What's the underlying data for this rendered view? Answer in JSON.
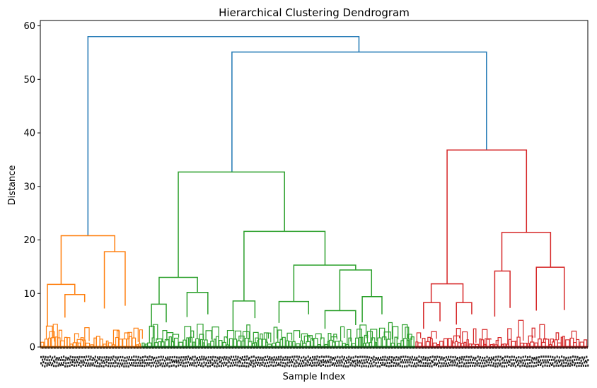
{
  "chart_data": {
    "type": "dendrogram",
    "title": "Hierarchical Clustering Dendrogram",
    "xlabel": "Sample Index",
    "ylabel": "Distance",
    "ylim": [
      0,
      61
    ],
    "yticks": [
      0,
      10,
      20,
      30,
      40,
      50,
      60
    ],
    "grid": false,
    "colors": {
      "above_threshold": "#1f77b4",
      "cluster_1": "#ff7f0e",
      "cluster_2": "#2ca02c",
      "cluster_3": "#d62728"
    },
    "leaf_span": [
      0,
      1000
    ],
    "clusters": [
      {
        "name": "cluster_1",
        "x_range": [
          0,
          185
        ]
      },
      {
        "name": "cluster_2",
        "x_range": [
          185,
          685
        ]
      },
      {
        "name": "cluster_3",
        "x_range": [
          685,
          1000
        ]
      }
    ],
    "links": [
      {
        "x": [
          87,
          87,
          582,
          582
        ],
        "y": [
          20.8,
          58,
          58,
          55.1
        ],
        "color": "above_threshold"
      },
      {
        "x": [
          350,
          350,
          815,
          815
        ],
        "y": [
          32.7,
          55.1,
          55.1,
          36.8
        ],
        "color": "above_threshold"
      },
      {
        "x": [
          38,
          38,
          136,
          136
        ],
        "y": [
          11.7,
          20.8,
          20.8,
          17.8
        ],
        "color": "cluster_1"
      },
      {
        "x": [
          13,
          13,
          63,
          63
        ],
        "y": [
          3.8,
          11.7,
          11.7,
          9.8
        ],
        "color": "cluster_1"
      },
      {
        "x": [
          45,
          45,
          81,
          81
        ],
        "y": [
          5.5,
          9.8,
          9.8,
          8.4
        ],
        "color": "cluster_1"
      },
      {
        "x": [
          117,
          117,
          155,
          155
        ],
        "y": [
          7.2,
          17.8,
          17.8,
          7.7
        ],
        "color": "cluster_1"
      },
      {
        "x": [
          252,
          252,
          446,
          446
        ],
        "y": [
          13,
          32.7,
          32.7,
          21.6
        ],
        "color": "cluster_2"
      },
      {
        "x": [
          217,
          217,
          287,
          287
        ],
        "y": [
          8,
          13,
          13,
          10.2
        ],
        "color": "cluster_2"
      },
      {
        "x": [
          203,
          203,
          230,
          230
        ],
        "y": [
          3.7,
          8,
          8,
          4.6
        ],
        "color": "cluster_2"
      },
      {
        "x": [
          268,
          268,
          306,
          306
        ],
        "y": [
          5.6,
          10.2,
          10.2,
          6.1
        ],
        "color": "cluster_2"
      },
      {
        "x": [
          372,
          372,
          520,
          520
        ],
        "y": [
          8.6,
          21.6,
          21.6,
          15.3
        ],
        "color": "cluster_2"
      },
      {
        "x": [
          352,
          352,
          392,
          392
        ],
        "y": [
          3.1,
          8.6,
          8.6,
          5.4
        ],
        "color": "cluster_2"
      },
      {
        "x": [
          463,
          463,
          576,
          576
        ],
        "y": [
          8.5,
          15.3,
          15.3,
          14.4
        ],
        "color": "cluster_2"
      },
      {
        "x": [
          436,
          436,
          490,
          490
        ],
        "y": [
          4.5,
          8.5,
          8.5,
          6.1
        ],
        "color": "cluster_2"
      },
      {
        "x": [
          547,
          547,
          605,
          605
        ],
        "y": [
          6.8,
          14.4,
          14.4,
          9.4
        ],
        "color": "cluster_2"
      },
      {
        "x": [
          520,
          520,
          576,
          576
        ],
        "y": [
          3.4,
          6.8,
          6.8,
          4.1
        ],
        "color": "cluster_2"
      },
      {
        "x": [
          588,
          588,
          624,
          624
        ],
        "y": [
          4.6,
          9.4,
          9.4,
          6.1
        ],
        "color": "cluster_2"
      },
      {
        "x": [
          743,
          743,
          888,
          888
        ],
        "y": [
          11.8,
          36.8,
          36.8,
          21.4
        ],
        "color": "cluster_3"
      },
      {
        "x": [
          714,
          714,
          772,
          772
        ],
        "y": [
          8.3,
          11.8,
          11.8,
          8.3
        ],
        "color": "cluster_3"
      },
      {
        "x": [
          700,
          700,
          730,
          730
        ],
        "y": [
          3.4,
          8.3,
          8.3,
          4.8
        ],
        "color": "cluster_3"
      },
      {
        "x": [
          760,
          760,
          788,
          788
        ],
        "y": [
          4.2,
          8.3,
          8.3,
          6.1
        ],
        "color": "cluster_3"
      },
      {
        "x": [
          843,
          843,
          932,
          932
        ],
        "y": [
          14.2,
          21.4,
          21.4,
          14.9
        ],
        "color": "cluster_3"
      },
      {
        "x": [
          830,
          830,
          858,
          858
        ],
        "y": [
          5.7,
          14.2,
          14.2,
          7.3
        ],
        "color": "cluster_3"
      },
      {
        "x": [
          906,
          906,
          957,
          957
        ],
        "y": [
          6.8,
          14.9,
          14.9,
          6.9
        ],
        "color": "cluster_3"
      }
    ]
  }
}
